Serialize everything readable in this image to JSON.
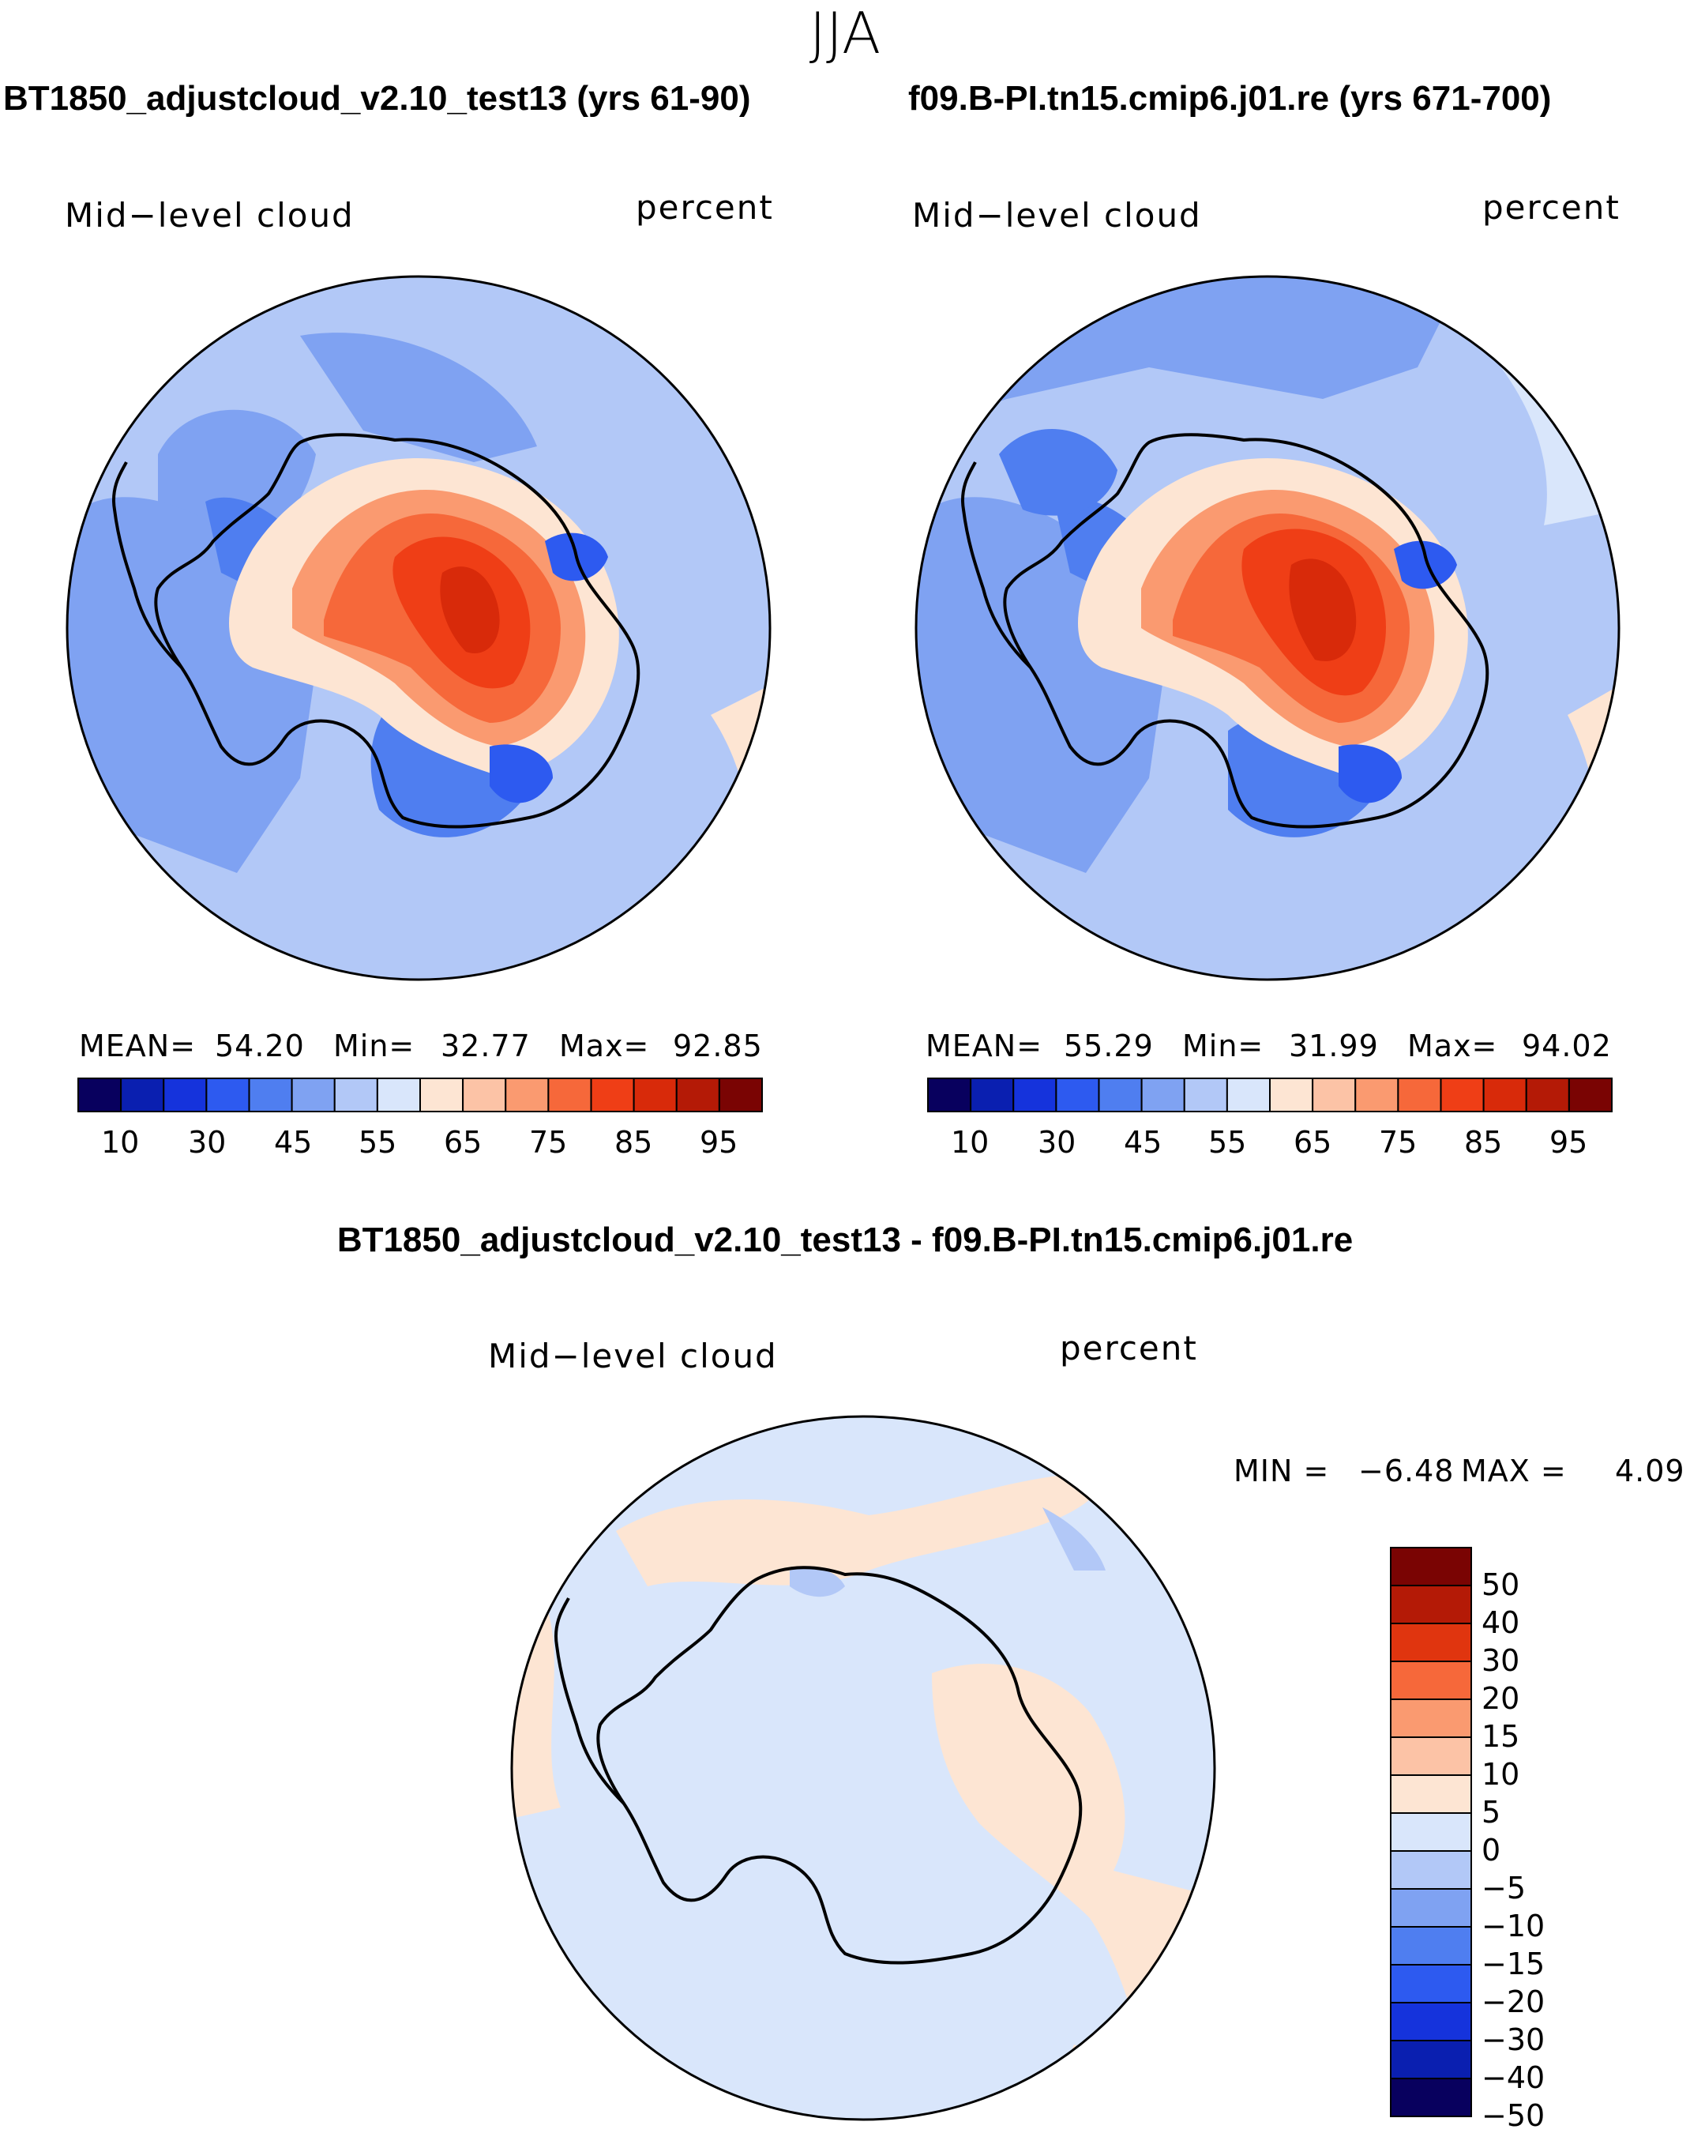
{
  "suptitle": "JJA",
  "panels": [
    {
      "title": "BT1850_adjustcloud_v2.10_test13 (yrs 61-90)",
      "variable": "Mid−level cloud",
      "units": "percent",
      "stats": {
        "mean_label": "MEAN=",
        "mean": "54.20",
        "min_label": "Min=",
        "min": "32.77",
        "max_label": "Max=",
        "max": "92.85"
      }
    },
    {
      "title": "f09.B-PI.tn15.cmip6.j01.re (yrs 671-700)",
      "variable": "Mid−level cloud",
      "units": "percent",
      "stats": {
        "mean_label": "MEAN=",
        "mean": "55.29",
        "min_label": "Min=",
        "min": "31.99",
        "max_label": "Max=",
        "max": "94.02"
      }
    }
  ],
  "abs_colorbar": {
    "colors": [
      "#08005e",
      "#0a1fb0",
      "#1533dc",
      "#2d5af0",
      "#4f7ef0",
      "#7fa2f2",
      "#b2c8f7",
      "#d9e6fb",
      "#fde5d3",
      "#fcc3a6",
      "#fa9a70",
      "#f6683a",
      "#ef3e16",
      "#d82a0a",
      "#b41a06",
      "#7a0403"
    ],
    "tick_labels": [
      "10",
      "30",
      "45",
      "55",
      "65",
      "75",
      "85",
      "95"
    ]
  },
  "diff_panel": {
    "title": "BT1850_adjustcloud_v2.10_test13 - f09.B-PI.tn15.cmip6.j01.re",
    "variable": "Mid−level cloud",
    "units": "percent",
    "stats": {
      "min_label": "MIN =",
      "min": "−6.48",
      "max_label": "MAX =",
      "max": "4.09"
    }
  },
  "diff_colorbar": {
    "colors": [
      "#7a0403",
      "#b41a06",
      "#e0350f",
      "#f6683a",
      "#fa9a70",
      "#fcc3a6",
      "#fde5d3",
      "#d9e6fb",
      "#b2c8f7",
      "#7fa2f2",
      "#4f7ef0",
      "#2d5af0",
      "#1533dc",
      "#0a1fb0",
      "#08005e"
    ],
    "tick_labels": [
      "50",
      "40",
      "30",
      "20",
      "15",
      "10",
      "5",
      "0",
      "−5",
      "−10",
      "−15",
      "−20",
      "−30",
      "−40",
      "−50"
    ]
  }
}
